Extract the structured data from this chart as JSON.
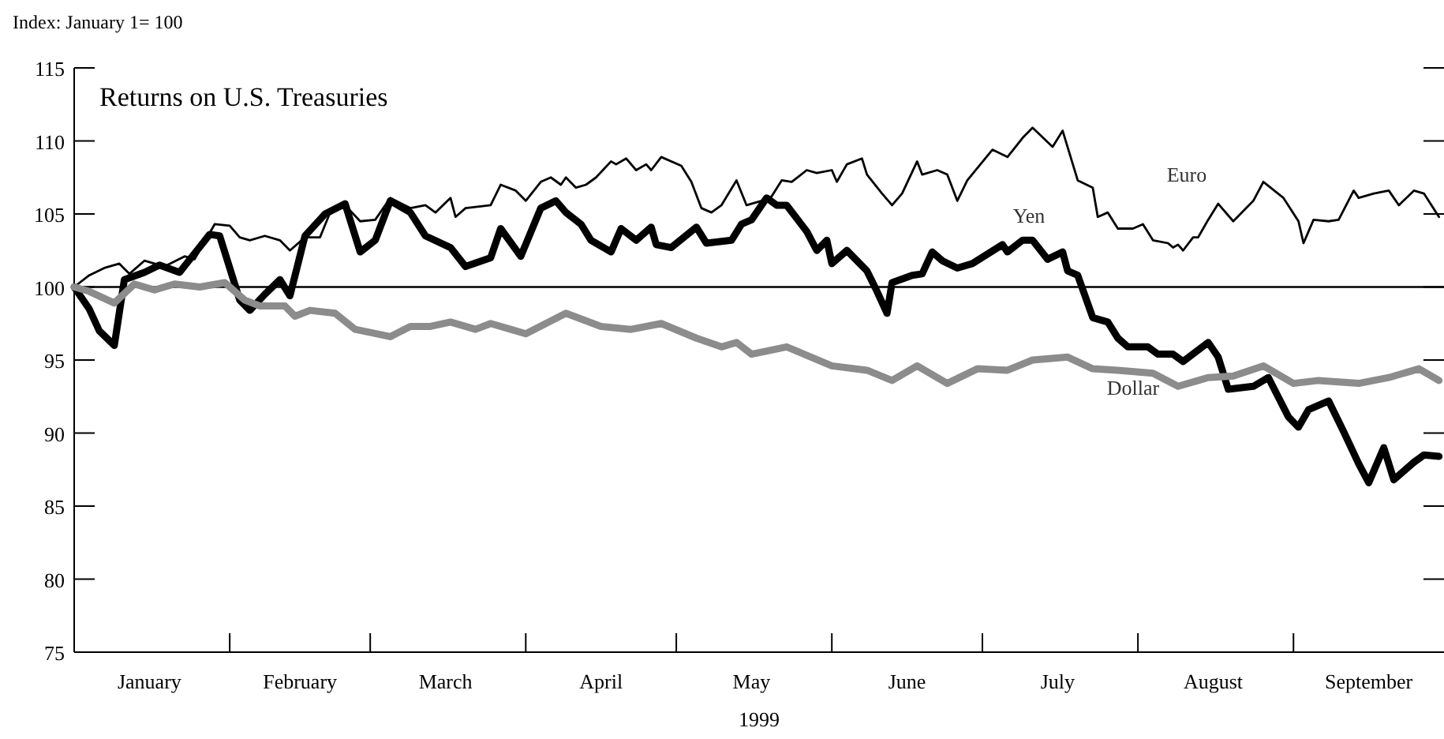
{
  "chart_data": {
    "type": "line",
    "title": "Returns on U.S. Treasuries",
    "ylabel": "Index: January 1= 100",
    "xlabel": "1999",
    "xlim": [
      "1999-01-01",
      "1999-10-01"
    ],
    "xticks": [
      {
        "value": "1999-01-16",
        "label": "January"
      },
      {
        "value": "1999-02-01",
        "label": null
      },
      {
        "value": "1999-02-15",
        "label": "February"
      },
      {
        "value": "1999-03-01",
        "label": null
      },
      {
        "value": "1999-03-16",
        "label": "March"
      },
      {
        "value": "1999-04-01",
        "label": null
      },
      {
        "value": "1999-04-16",
        "label": "April"
      },
      {
        "value": "1999-05-01",
        "label": null
      },
      {
        "value": "1999-05-16",
        "label": "May"
      },
      {
        "value": "1999-06-01",
        "label": null
      },
      {
        "value": "1999-06-16",
        "label": "June"
      },
      {
        "value": "1999-07-01",
        "label": null
      },
      {
        "value": "1999-07-16",
        "label": "July"
      },
      {
        "value": "1999-08-01",
        "label": null
      },
      {
        "value": "1999-08-16",
        "label": "August"
      },
      {
        "value": "1999-09-01",
        "label": null
      },
      {
        "value": "1999-09-16",
        "label": "September"
      }
    ],
    "ylim": [
      75,
      115
    ],
    "yticks": [
      75,
      80,
      85,
      90,
      95,
      100,
      105,
      110,
      115
    ],
    "ref_lines": [
      {
        "axis": "y",
        "value": 100
      }
    ],
    "series": [
      {
        "name": "Euro",
        "color": "#000000",
        "x": [
          "1999-01-01",
          "1999-01-04",
          "1999-01-07",
          "1999-01-10",
          "1999-01-12",
          "1999-01-15",
          "1999-01-19",
          "1999-01-23",
          "1999-01-25",
          "1999-01-29",
          "1999-02-01",
          "1999-02-03",
          "1999-02-05",
          "1999-02-08",
          "1999-02-11",
          "1999-02-13",
          "1999-02-16",
          "1999-02-19",
          "1999-02-21",
          "1999-02-24",
          "1999-02-27",
          "1999-03-02",
          "1999-03-05",
          "1999-03-09",
          "1999-03-12",
          "1999-03-14",
          "1999-03-17",
          "1999-03-18",
          "1999-03-20",
          "1999-03-25",
          "1999-03-27",
          "1999-03-30",
          "1999-04-01",
          "1999-04-04",
          "1999-04-06",
          "1999-04-08",
          "1999-04-09",
          "1999-04-11",
          "1999-04-13",
          "1999-04-15",
          "1999-04-18",
          "1999-04-19",
          "1999-04-21",
          "1999-04-23",
          "1999-04-25",
          "1999-04-26",
          "1999-04-28",
          "1999-05-02",
          "1999-05-04",
          "1999-05-06",
          "1999-05-08",
          "1999-05-10",
          "1999-05-13",
          "1999-05-15",
          "1999-05-18",
          "1999-05-20",
          "1999-05-22",
          "1999-05-24",
          "1999-05-27",
          "1999-05-29",
          "1999-06-01",
          "1999-06-02",
          "1999-06-04",
          "1999-06-07",
          "1999-06-08",
          "1999-06-11",
          "1999-06-13",
          "1999-06-15",
          "1999-06-18",
          "1999-06-19",
          "1999-06-22",
          "1999-06-24",
          "1999-06-26",
          "1999-06-28",
          "1999-07-03",
          "1999-07-06",
          "1999-07-09",
          "1999-07-11",
          "1999-07-15",
          "1999-07-17",
          "1999-07-20",
          "1999-07-23",
          "1999-07-24",
          "1999-07-26",
          "1999-07-28",
          "1999-07-31",
          "1999-08-02",
          "1999-08-04",
          "1999-08-07",
          "1999-08-08",
          "1999-08-09",
          "1999-08-10",
          "1999-08-12",
          "1999-08-13",
          "1999-08-15",
          "1999-08-17",
          "1999-08-20",
          "1999-08-24",
          "1999-08-26",
          "1999-08-30",
          "1999-09-02",
          "1999-09-03",
          "1999-09-05",
          "1999-09-08",
          "1999-09-10",
          "1999-09-13",
          "1999-09-14",
          "1999-09-17",
          "1999-09-20",
          "1999-09-22",
          "1999-09-25",
          "1999-09-27",
          "1999-09-30"
        ],
        "values": [
          100,
          100.8,
          101.3,
          101.6,
          100.9,
          101.8,
          101.4,
          102.1,
          101.9,
          104.3,
          104.2,
          103.4,
          103.2,
          103.5,
          103.2,
          102.5,
          103.4,
          103.4,
          105.1,
          105.6,
          104.5,
          104.6,
          106.1,
          105.4,
          105.6,
          105.1,
          106.1,
          104.8,
          105.4,
          105.6,
          107,
          106.6,
          105.9,
          107.2,
          107.5,
          107,
          107.5,
          106.8,
          107,
          107.5,
          108.6,
          108.4,
          108.8,
          108,
          108.4,
          108,
          108.9,
          108.3,
          107.2,
          105.4,
          105.1,
          105.6,
          107.3,
          105.6,
          105.9,
          106.2,
          107.3,
          107.2,
          108,
          107.8,
          108,
          107.2,
          108.4,
          108.8,
          107.7,
          106.4,
          105.6,
          106.4,
          108.6,
          107.7,
          108,
          107.7,
          105.9,
          107.3,
          109.4,
          108.9,
          110.2,
          110.9,
          109.6,
          110.7,
          107.3,
          106.8,
          104.8,
          105.1,
          104,
          104,
          104.3,
          103.2,
          103,
          102.7,
          102.9,
          102.5,
          103.4,
          103.4,
          104.6,
          105.7,
          104.5,
          105.9,
          107.2,
          106.1,
          104.5,
          103,
          104.6,
          104.5,
          104.6,
          106.6,
          106.1,
          106.4,
          106.6,
          105.6,
          106.6,
          106.4,
          104.8
        ]
      },
      {
        "name": "Yen",
        "color": "#000000",
        "x": [
          "1999-01-01",
          "1999-01-04",
          "1999-01-06",
          "1999-01-09",
          "1999-01-11",
          "1999-01-15",
          "1999-01-18",
          "1999-01-22",
          "1999-01-28",
          "1999-01-30",
          "1999-02-03",
          "1999-02-05",
          "1999-02-08",
          "1999-02-11",
          "1999-02-13",
          "1999-02-16",
          "1999-02-20",
          "1999-02-24",
          "1999-02-27",
          "1999-03-02",
          "1999-03-05",
          "1999-03-09",
          "1999-03-12",
          "1999-03-17",
          "1999-03-20",
          "1999-03-25",
          "1999-03-27",
          "1999-03-31",
          "1999-04-04",
          "1999-04-07",
          "1999-04-09",
          "1999-04-12",
          "1999-04-14",
          "1999-04-18",
          "1999-04-20",
          "1999-04-23",
          "1999-04-26",
          "1999-04-27",
          "1999-04-30",
          "1999-05-05",
          "1999-05-07",
          "1999-05-12",
          "1999-05-14",
          "1999-05-16",
          "1999-05-19",
          "1999-05-21",
          "1999-05-23",
          "1999-05-27",
          "1999-05-29",
          "1999-05-31",
          "1999-06-01",
          "1999-06-04",
          "1999-06-08",
          "1999-06-10",
          "1999-06-12",
          "1999-06-13",
          "1999-06-17",
          "1999-06-19",
          "1999-06-21",
          "1999-06-23",
          "1999-06-26",
          "1999-06-29",
          "1999-07-05",
          "1999-07-06",
          "1999-07-09",
          "1999-07-11",
          "1999-07-14",
          "1999-07-17",
          "1999-07-18",
          "1999-07-20",
          "1999-07-23",
          "1999-07-26",
          "1999-07-28",
          "1999-07-30",
          "1999-08-03",
          "1999-08-05",
          "1999-08-08",
          "1999-08-10",
          "1999-08-15",
          "1999-08-17",
          "1999-08-19",
          "1999-08-24",
          "1999-08-27",
          "1999-08-31",
          "1999-09-02",
          "1999-09-04",
          "1999-09-08",
          "1999-09-11",
          "1999-09-14",
          "1999-09-16",
          "1999-09-19",
          "1999-09-21",
          "1999-09-25",
          "1999-09-27",
          "1999-09-30"
        ],
        "values": [
          100,
          98.5,
          97,
          96,
          100.5,
          101,
          101.5,
          101,
          103.6,
          103.5,
          99.1,
          98.4,
          99.5,
          100.5,
          99.4,
          103.5,
          105,
          105.7,
          102.4,
          103.2,
          105.9,
          105.1,
          103.5,
          102.7,
          101.4,
          102,
          104,
          102.1,
          105.4,
          105.9,
          105.1,
          104.3,
          103.2,
          102.4,
          104,
          103.2,
          104.1,
          102.9,
          102.7,
          104.1,
          103,
          103.2,
          104.3,
          104.6,
          106.1,
          105.6,
          105.6,
          103.8,
          102.5,
          103.2,
          101.6,
          102.5,
          101.1,
          99.7,
          98.2,
          100.3,
          100.8,
          100.9,
          102.4,
          101.8,
          101.3,
          101.6,
          102.9,
          102.4,
          103.2,
          103.2,
          101.9,
          102.4,
          101.1,
          100.8,
          97.9,
          97.6,
          96.5,
          95.9,
          95.9,
          95.4,
          95.4,
          94.9,
          96.2,
          95.2,
          93,
          93.2,
          93.8,
          91.1,
          90.4,
          91.6,
          92.2,
          90.1,
          87.9,
          86.6,
          89,
          86.8,
          88,
          88.5,
          88.4
        ]
      },
      {
        "name": "Dollar",
        "color": "#8c8c8c",
        "x": [
          "1999-01-01",
          "1999-01-04",
          "1999-01-09",
          "1999-01-13",
          "1999-01-17",
          "1999-01-21",
          "1999-01-26",
          "1999-01-31",
          "1999-02-04",
          "1999-02-07",
          "1999-02-12",
          "1999-02-14",
          "1999-02-17",
          "1999-02-22",
          "1999-02-26",
          "1999-03-05",
          "1999-03-09",
          "1999-03-13",
          "1999-03-17",
          "1999-03-22",
          "1999-03-25",
          "1999-03-29",
          "1999-04-01",
          "1999-04-09",
          "1999-04-16",
          "1999-04-22",
          "1999-04-28",
          "1999-05-05",
          "1999-05-10",
          "1999-05-13",
          "1999-05-16",
          "1999-05-23",
          "1999-06-01",
          "1999-06-08",
          "1999-06-13",
          "1999-06-18",
          "1999-06-24",
          "1999-06-30",
          "1999-07-06",
          "1999-07-11",
          "1999-07-18",
          "1999-07-23",
          "1999-07-28",
          "1999-08-04",
          "1999-08-09",
          "1999-08-15",
          "1999-08-20",
          "1999-08-26",
          "1999-09-01",
          "1999-09-06",
          "1999-09-14",
          "1999-09-20",
          "1999-09-26",
          "1999-09-30"
        ],
        "values": [
          100,
          99.7,
          98.9,
          100.2,
          99.8,
          100.2,
          100,
          100.3,
          99.1,
          98.7,
          98.7,
          98,
          98.4,
          98.2,
          97.1,
          96.6,
          97.3,
          97.3,
          97.6,
          97.1,
          97.5,
          97.1,
          96.8,
          98.2,
          97.3,
          97.1,
          97.5,
          96.5,
          95.9,
          96.2,
          95.4,
          95.9,
          94.6,
          94.3,
          93.6,
          94.6,
          93.4,
          94.4,
          94.3,
          95,
          95.2,
          94.4,
          94.3,
          94.1,
          93.2,
          93.8,
          93.9,
          94.6,
          93.4,
          93.6,
          93.4,
          93.8,
          94.4,
          93.6
        ]
      }
    ]
  }
}
